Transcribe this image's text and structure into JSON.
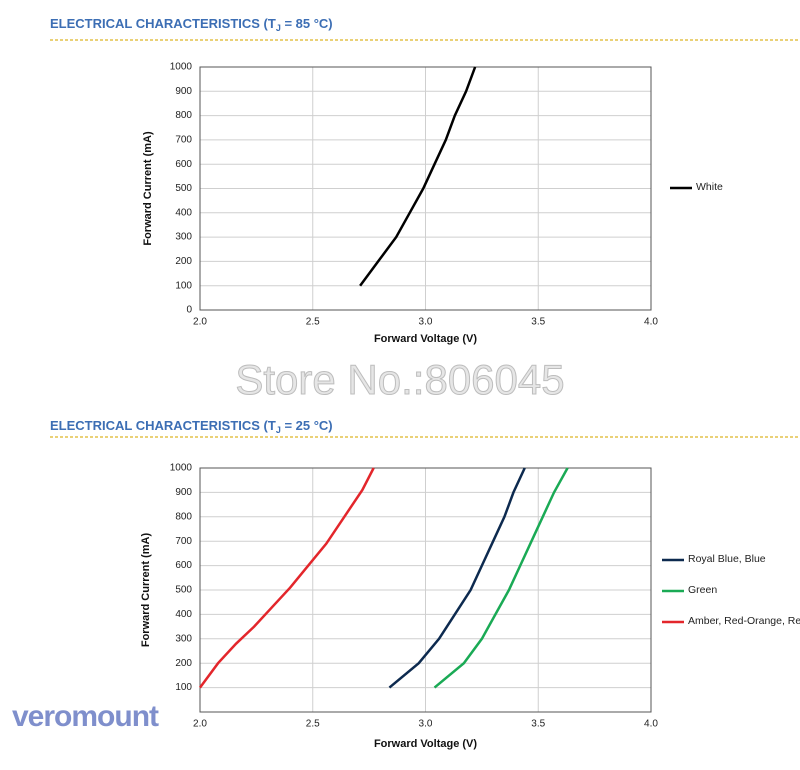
{
  "watermark": "Store No.:806045",
  "logo": "veromount",
  "chart_data": [
    {
      "type": "line",
      "title": "ELECTRICAL CHARACTERISTICS (T",
      "title_subscript": "J",
      "title_end": " = 85 °C)",
      "x_label": "Forward Voltage (V)",
      "y_label": "Forward Current (mA)",
      "xlim": [
        2,
        4
      ],
      "xticks": [
        {
          "value": 2,
          "label": "2.0"
        },
        {
          "value": 2.5,
          "label": "2.5"
        },
        {
          "value": 3,
          "label": "3.0"
        },
        {
          "value": 3.5,
          "label": "3.5"
        },
        {
          "value": 4,
          "label": "4.0"
        }
      ],
      "ylim": [
        0,
        1000
      ],
      "yticks": [
        0,
        100,
        200,
        300,
        400,
        500,
        600,
        700,
        800,
        900,
        1000
      ],
      "grid": true,
      "legend": "right",
      "series": [
        {
          "name": "White",
          "color": "#000000",
          "x": [
            2.71,
            2.79,
            2.87,
            2.93,
            2.99,
            3.04,
            3.09,
            3.13,
            3.18,
            3.22
          ],
          "values": [
            100,
            200,
            300,
            400,
            500,
            600,
            700,
            800,
            900,
            1000
          ]
        }
      ]
    },
    {
      "type": "line",
      "title": "ELECTRICAL CHARACTERISTICS (T",
      "title_subscript": "J",
      "title_end": " = 25 °C)",
      "x_label": "Forward Voltage (V)",
      "y_label": "Forward Current (mA)",
      "xlim": [
        2,
        4
      ],
      "xticks": [
        {
          "value": 2,
          "label": "2.0"
        },
        {
          "value": 2.5,
          "label": "2.5"
        },
        {
          "value": 3,
          "label": "3.0"
        },
        {
          "value": 3.5,
          "label": "3.5"
        },
        {
          "value": 4,
          "label": "4.0"
        }
      ],
      "ylim": [
        0,
        1000
      ],
      "yticks": [
        100,
        200,
        300,
        400,
        500,
        600,
        700,
        800,
        900,
        1000
      ],
      "grid": true,
      "legend": "right",
      "series": [
        {
          "name": "Royal Blue, Blue",
          "color": "#0d2a4f",
          "x": [
            2.84,
            2.97,
            3.06,
            3.13,
            3.2,
            3.25,
            3.3,
            3.35,
            3.39,
            3.44
          ],
          "values": [
            100,
            200,
            300,
            400,
            500,
            600,
            700,
            800,
            900,
            1000
          ]
        },
        {
          "name": "Green",
          "color": "#1aaa55",
          "x": [
            3.04,
            3.17,
            3.25,
            3.31,
            3.37,
            3.42,
            3.47,
            3.52,
            3.57,
            3.63
          ],
          "values": [
            100,
            200,
            300,
            400,
            500,
            600,
            700,
            800,
            900,
            1000
          ]
        },
        {
          "name": "Amber, Red-Orange, Red",
          "color": "#e3262b",
          "x": [
            2.0,
            2.08,
            2.16,
            2.24,
            2.32,
            2.4,
            2.48,
            2.56,
            2.64,
            2.72,
            2.77
          ],
          "values": [
            100,
            200,
            280,
            350,
            430,
            510,
            600,
            690,
            800,
            910,
            1000
          ]
        }
      ]
    }
  ]
}
